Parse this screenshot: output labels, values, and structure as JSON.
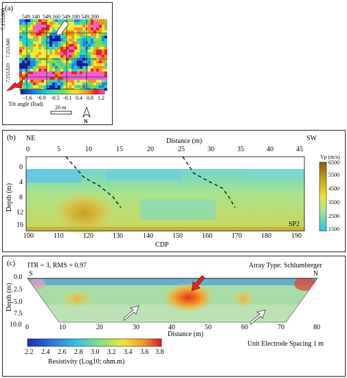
{
  "panel_a": {
    "label": "(a)",
    "x_coords": [
      "549,140",
      "549,160",
      "549,180",
      "549,200"
    ],
    "y_coords": [
      "7,153,860",
      "7,153,840",
      "7,153,820"
    ],
    "scale_ticks": [
      "-1.6",
      "-0.9",
      "-0.5",
      "-0.1",
      "0.4",
      "0.8",
      "1.2"
    ],
    "scale_title": "Tilt angle (Rad)",
    "bar_label": "20 m",
    "north": "N"
  },
  "panel_b": {
    "label": "(b)",
    "left_dir": "NE",
    "right_dir": "SW",
    "top_axis_title": "Distance (m)",
    "top_ticks": [
      "0",
      "5",
      "10",
      "15",
      "20",
      "25",
      "30",
      "35",
      "40",
      "45"
    ],
    "y_title": "Depth (m)",
    "y_ticks": [
      "0",
      "4",
      "8",
      "12",
      "16"
    ],
    "bottom_ticks": [
      "100",
      "110",
      "120",
      "130",
      "140",
      "150",
      "160",
      "170",
      "180",
      "190"
    ],
    "bottom_title": "CDP",
    "profile_label": "SP2",
    "cb_title": "Vp (m/s)",
    "cb_ticks": [
      "6500",
      "5500",
      "4500",
      "3500",
      "2500",
      "1500"
    ]
  },
  "panel_c": {
    "label": "(c)",
    "iter_text": "ITR = 3, RMS = 0.97",
    "array_text": "Array Type: Schlumberger",
    "left_dir": "S",
    "right_dir": "N",
    "y_title": "Depth (m)",
    "y_ticks": [
      "0.0",
      "2.5",
      "5.0",
      "7.5",
      "10.0"
    ],
    "x_ticks": [
      "0",
      "10",
      "20",
      "30",
      "40",
      "50",
      "60",
      "70",
      "80"
    ],
    "x_title": "Distance (m)",
    "spacing_text": "Unit Electrode Spacing 1 m",
    "cb_ticks": [
      "2.2",
      "2.4",
      "2.6",
      "2.8",
      "3.0",
      "3.2",
      "3.4",
      "3.6",
      "3.8"
    ],
    "cb_title": "Resistivity (Log10; ohm.m)"
  }
}
